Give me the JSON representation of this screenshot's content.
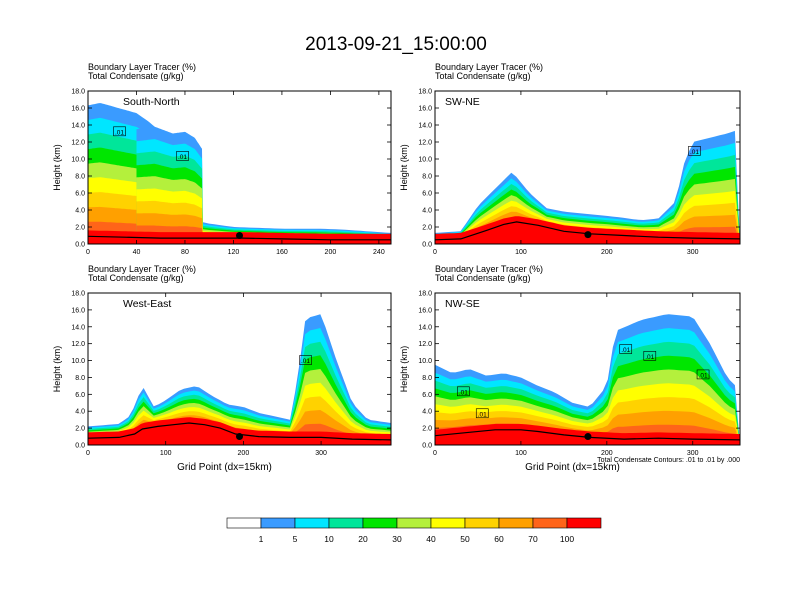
{
  "title": "2013-09-21_15:00:00",
  "colors": {
    "levels": [
      "#ffffff",
      "#3a9bff",
      "#00e6ff",
      "#00e69a",
      "#00e600",
      "#b4f03c",
      "#ffff00",
      "#ffd200",
      "#ffa000",
      "#ff6419",
      "#ff0000"
    ],
    "terrain_fill": "#ff0000",
    "terrain_line": "#000000",
    "marker": "#000000"
  },
  "legend": {
    "labels": [
      "1",
      "5",
      "10",
      "20",
      "30",
      "40",
      "50",
      "60",
      "70",
      "100"
    ]
  },
  "note": "Total Condensate Contours: .01 to .01 by .000",
  "chart_data": [
    {
      "type": "heatmap",
      "panel_label": "South-North",
      "title_line1": "Boundary Layer Tracer   (%)",
      "title_line2": "Total Condensate   (g/kg)",
      "ylabel": "Height (km)",
      "xlabel": "",
      "xlim": [
        0,
        250
      ],
      "ylim": [
        0,
        18
      ],
      "xticks": [
        "0",
        "40",
        "80",
        "120",
        "160",
        "200",
        "240"
      ],
      "yticks": [
        "0.0",
        "2.0",
        "4.0",
        "6.0",
        "8.0",
        "10.0",
        "12.0",
        "14.0",
        "16.0",
        "18.0"
      ],
      "terrain": [
        [
          0,
          0.9
        ],
        [
          30,
          0.8
        ],
        [
          60,
          0.7
        ],
        [
          100,
          0.7
        ],
        [
          128,
          0.7
        ],
        [
          160,
          0.6
        ],
        [
          200,
          0.5
        ],
        [
          250,
          0.5
        ]
      ],
      "contour_labels": [
        {
          "x": 26,
          "y": 13.2,
          "text": ".01"
        },
        {
          "x": 78,
          "y": 10.3,
          "text": ".01"
        }
      ],
      "marker": {
        "x": 125,
        "y": 1.0
      },
      "clouds": [
        {
          "x0": 0,
          "x1": 250,
          "top": [
            [
              0,
              4.5
            ],
            [
              20,
              3
            ],
            [
              40,
              2.8
            ],
            [
              60,
              3
            ],
            [
              80,
              3
            ],
            [
              100,
              2.4
            ],
            [
              120,
              2.0
            ],
            [
              140,
              1.9
            ],
            [
              160,
              1.8
            ],
            [
              190,
              1.8
            ],
            [
              210,
              1.7
            ],
            [
              240,
              1.4
            ],
            [
              250,
              1.3
            ]
          ]
        },
        {
          "x0": 0,
          "x1": 80,
          "top": [
            [
              0,
              16.3
            ],
            [
              10,
              16.6
            ],
            [
              25,
              16.0
            ],
            [
              40,
              15.4
            ],
            [
              50,
              14.4
            ],
            [
              60,
              13.2
            ],
            [
              70,
              12.8
            ],
            [
              80,
              12.0
            ]
          ]
        },
        {
          "x0": 40,
          "x1": 95,
          "top": [
            [
              40,
              13.5
            ],
            [
              55,
              13.8
            ],
            [
              70,
              13.0
            ],
            [
              80,
              13.2
            ],
            [
              88,
              12.5
            ],
            [
              95,
              11.0
            ]
          ]
        }
      ]
    },
    {
      "type": "heatmap",
      "panel_label": "SW-NE",
      "title_line1": "Boundary Layer Tracer   (%)",
      "title_line2": "Total Condensate   (g/kg)",
      "ylabel": "Height (km)",
      "xlabel": "",
      "xlim": [
        0,
        355
      ],
      "ylim": [
        0,
        18
      ],
      "xticks": [
        "0",
        "100",
        "200",
        "300"
      ],
      "yticks": [
        "0.0",
        "2.0",
        "4.0",
        "6.0",
        "8.0",
        "10.0",
        "12.0",
        "14.0",
        "16.0",
        "18.0"
      ],
      "terrain": [
        [
          0,
          0.5
        ],
        [
          30,
          0.6
        ],
        [
          60,
          1.6
        ],
        [
          80,
          2.3
        ],
        [
          95,
          2.6
        ],
        [
          120,
          2.2
        ],
        [
          150,
          1.5
        ],
        [
          180,
          1.2
        ],
        [
          220,
          1.0
        ],
        [
          260,
          0.8
        ],
        [
          300,
          0.7
        ],
        [
          355,
          0.6
        ]
      ],
      "contour_labels": [
        {
          "x": 302,
          "y": 10.9,
          "text": ".01"
        }
      ],
      "marker": {
        "x": 178,
        "y": 1.1
      },
      "clouds": [
        {
          "x0": 0,
          "x1": 355,
          "top": [
            [
              0,
              1.3
            ],
            [
              30,
              1.5
            ],
            [
              50,
              4.5
            ],
            [
              70,
              6.5
            ],
            [
              90,
              8.5
            ],
            [
              110,
              6.0
            ],
            [
              130,
              4.2
            ],
            [
              150,
              3.8
            ],
            [
              180,
              3.5
            ],
            [
              210,
              3.2
            ],
            [
              240,
              2.8
            ],
            [
              260,
              3.0
            ],
            [
              280,
              5.0
            ],
            [
              290,
              9.5
            ],
            [
              300,
              12.0
            ],
            [
              320,
              12.5
            ],
            [
              340,
              13.0
            ],
            [
              355,
              13.5
            ]
          ]
        }
      ]
    },
    {
      "type": "heatmap",
      "panel_label": "West-East",
      "title_line1": "Boundary Layer Tracer   (%)",
      "title_line2": "Total Condensate   (g/kg)",
      "ylabel": "Height (km)",
      "xlabel": "Grid Point (dx=15km)",
      "xlim": [
        0,
        390
      ],
      "ylim": [
        0,
        18
      ],
      "xticks": [
        "0",
        "100",
        "200",
        "300"
      ],
      "yticks": [
        "0.0",
        "2.0",
        "4.0",
        "6.0",
        "8.0",
        "10.0",
        "12.0",
        "14.0",
        "16.0",
        "18.0"
      ],
      "terrain": [
        [
          0,
          0.8
        ],
        [
          40,
          0.9
        ],
        [
          60,
          1.3
        ],
        [
          70,
          1.9
        ],
        [
          90,
          2.2
        ],
        [
          110,
          2.4
        ],
        [
          130,
          2.6
        ],
        [
          150,
          2.4
        ],
        [
          170,
          2.0
        ],
        [
          190,
          1.3
        ],
        [
          220,
          1.0
        ],
        [
          260,
          0.9
        ],
        [
          300,
          0.9
        ],
        [
          340,
          0.7
        ],
        [
          390,
          0.6
        ]
      ],
      "contour_labels": [
        {
          "x": 280,
          "y": 10.0,
          "text": ".01"
        }
      ],
      "marker": {
        "x": 195,
        "y": 1.0
      },
      "clouds": [
        {
          "x0": 0,
          "x1": 390,
          "top": [
            [
              0,
              2.2
            ],
            [
              40,
              2.5
            ],
            [
              55,
              3.5
            ],
            [
              70,
              7.0
            ],
            [
              85,
              4.5
            ],
            [
              100,
              5.3
            ],
            [
              120,
              6.6
            ],
            [
              140,
              7.0
            ],
            [
              160,
              5.8
            ],
            [
              180,
              4.8
            ],
            [
              200,
              4.5
            ],
            [
              220,
              3.8
            ],
            [
              240,
              3.4
            ],
            [
              260,
              3.0
            ],
            [
              270,
              8.0
            ],
            [
              280,
              15.0
            ],
            [
              300,
              15.5
            ],
            [
              320,
              10.0
            ],
            [
              340,
              5.0
            ],
            [
              360,
              3.0
            ],
            [
              390,
              2.6
            ]
          ]
        }
      ]
    },
    {
      "type": "heatmap",
      "panel_label": "NW-SE",
      "title_line1": "Boundary Layer Tracer   (%)",
      "title_line2": "Total Condensate   (g/kg)",
      "ylabel": "Height (km)",
      "xlabel": "Grid Point (dx=15km)",
      "xlim": [
        0,
        355
      ],
      "ylim": [
        0,
        18
      ],
      "xticks": [
        "0",
        "100",
        "200",
        "300"
      ],
      "yticks": [
        "0.0",
        "2.0",
        "4.0",
        "6.0",
        "8.0",
        "10.0",
        "12.0",
        "14.0",
        "16.0",
        "18.0"
      ],
      "terrain": [
        [
          0,
          1.1
        ],
        [
          40,
          1.5
        ],
        [
          70,
          1.8
        ],
        [
          100,
          1.8
        ],
        [
          120,
          1.6
        ],
        [
          150,
          1.2
        ],
        [
          180,
          0.9
        ],
        [
          220,
          0.7
        ],
        [
          260,
          0.8
        ],
        [
          300,
          0.7
        ],
        [
          355,
          0.6
        ]
      ],
      "contour_labels": [
        {
          "x": 33,
          "y": 6.3,
          "text": ".01"
        },
        {
          "x": 55,
          "y": 3.7,
          "text": ".01"
        },
        {
          "x": 222,
          "y": 11.3,
          "text": ".01"
        },
        {
          "x": 250,
          "y": 10.5,
          "text": ".01"
        },
        {
          "x": 312,
          "y": 8.3,
          "text": ".01"
        }
      ],
      "marker": {
        "x": 178,
        "y": 1.0
      },
      "clouds": [
        {
          "x0": 0,
          "x1": 355,
          "top": [
            [
              0,
              9.5
            ],
            [
              20,
              8.5
            ],
            [
              40,
              9.0
            ],
            [
              60,
              8.2
            ],
            [
              80,
              8.5
            ],
            [
              100,
              8.0
            ],
            [
              120,
              7.0
            ],
            [
              140,
              6.2
            ],
            [
              160,
              5.0
            ],
            [
              180,
              4.5
            ],
            [
              200,
              7.0
            ],
            [
              210,
              13.5
            ],
            [
              240,
              14.8
            ],
            [
              270,
              15.5
            ],
            [
              300,
              15.2
            ],
            [
              320,
              12.0
            ],
            [
              340,
              8.0
            ],
            [
              355,
              6.5
            ]
          ]
        }
      ]
    }
  ]
}
